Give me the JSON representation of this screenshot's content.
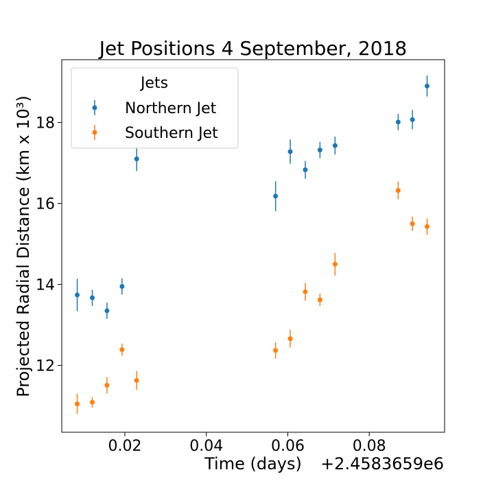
{
  "chart_data": {
    "type": "scatter",
    "title": "Jet Positions 4 September, 2018",
    "xlabel": "Time (days)",
    "ylabel": "Projected Radial Distance (km x 10³)",
    "x_offset_label": "+2.4583659e6",
    "xlim": [
      0.0045,
      0.0985
    ],
    "ylim": [
      10.35,
      19.55
    ],
    "x_ticks": [
      0.02,
      0.04,
      0.06,
      0.08
    ],
    "x_tick_labels": [
      "0.02",
      "0.04",
      "0.06",
      "0.08"
    ],
    "y_ticks": [
      12,
      14,
      16,
      18
    ],
    "y_tick_labels": [
      "12",
      "14",
      "16",
      "18"
    ],
    "legend": {
      "title": "Jets",
      "location": "upper-left"
    },
    "series": [
      {
        "name": "Northern Jet",
        "color": "#1f77b4",
        "points": [
          {
            "x": 0.0083,
            "y": 13.74,
            "err": 0.4
          },
          {
            "x": 0.012,
            "y": 13.67,
            "err": 0.2
          },
          {
            "x": 0.0156,
            "y": 13.35,
            "err": 0.2
          },
          {
            "x": 0.0193,
            "y": 13.95,
            "err": 0.2
          },
          {
            "x": 0.0229,
            "y": 17.1,
            "err": 0.3
          },
          {
            "x": 0.057,
            "y": 16.18,
            "err": 0.37
          },
          {
            "x": 0.0606,
            "y": 17.28,
            "err": 0.3
          },
          {
            "x": 0.0643,
            "y": 16.83,
            "err": 0.22
          },
          {
            "x": 0.0679,
            "y": 17.32,
            "err": 0.2
          },
          {
            "x": 0.0716,
            "y": 17.43,
            "err": 0.22
          },
          {
            "x": 0.0871,
            "y": 18.01,
            "err": 0.2
          },
          {
            "x": 0.0906,
            "y": 18.07,
            "err": 0.24
          },
          {
            "x": 0.0942,
            "y": 18.9,
            "err": 0.26
          }
        ]
      },
      {
        "name": "Southern Jet",
        "color": "#ff7f0e",
        "points": [
          {
            "x": 0.0083,
            "y": 11.05,
            "err": 0.25
          },
          {
            "x": 0.012,
            "y": 11.09,
            "err": 0.13
          },
          {
            "x": 0.0156,
            "y": 11.51,
            "err": 0.2
          },
          {
            "x": 0.0193,
            "y": 12.39,
            "err": 0.15
          },
          {
            "x": 0.0229,
            "y": 11.63,
            "err": 0.23
          },
          {
            "x": 0.057,
            "y": 12.37,
            "err": 0.2
          },
          {
            "x": 0.0606,
            "y": 12.66,
            "err": 0.22
          },
          {
            "x": 0.0643,
            "y": 13.82,
            "err": 0.22
          },
          {
            "x": 0.0679,
            "y": 13.62,
            "err": 0.15
          },
          {
            "x": 0.0716,
            "y": 14.5,
            "err": 0.28
          },
          {
            "x": 0.0871,
            "y": 16.32,
            "err": 0.22
          },
          {
            "x": 0.0906,
            "y": 15.5,
            "err": 0.18
          },
          {
            "x": 0.0942,
            "y": 15.43,
            "err": 0.2
          }
        ]
      }
    ]
  }
}
